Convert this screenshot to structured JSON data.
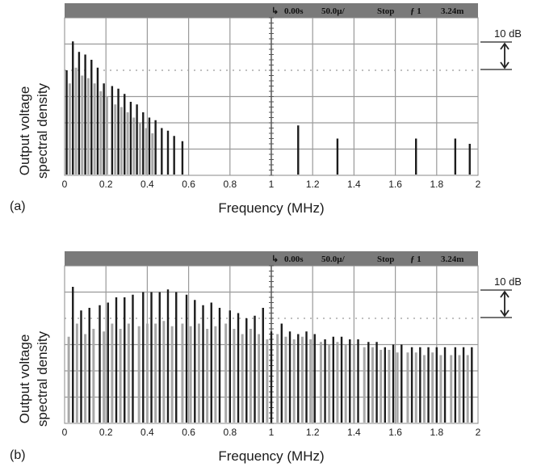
{
  "chart_data": [
    {
      "panel_label": "(a)",
      "type": "bar",
      "xlabel": "Frequency (MHz)",
      "ylabel": [
        "Output voltage",
        "spectral density"
      ],
      "xlim": [
        0,
        2
      ],
      "x_ticks": [
        "0",
        "0.2",
        "0.4",
        "0.6",
        "0.8",
        "1",
        "1.2",
        "1.4",
        "1.6",
        "1.8",
        "2"
      ],
      "y_unit": "dB",
      "scale_annotation": "10 dB",
      "grid": true,
      "status_bar": {
        "time": "0.00s",
        "timebase": "50.0µ/",
        "mode": "Stop",
        "trigger": "ƒ 1",
        "level": "3.24m"
      },
      "series": [
        {
          "style": "dark",
          "x": [
            0.01,
            0.04,
            0.07,
            0.1,
            0.13,
            0.16,
            0.19,
            0.23,
            0.26,
            0.29,
            0.32,
            0.35,
            0.38,
            0.41,
            0.44,
            0.47,
            0.5,
            0.53,
            0.57,
            1.13,
            1.32,
            1.7,
            1.89,
            1.96
          ],
          "values": [
            -20,
            -9,
            -13,
            -14,
            -16,
            -19,
            -25,
            -26,
            -27,
            -29,
            -32,
            -33,
            -36,
            -38,
            -39,
            -42,
            -43,
            -45,
            -47,
            -41,
            -46,
            -46,
            -46,
            -48
          ]
        },
        {
          "style": "grey",
          "x": [
            0.025,
            0.055,
            0.085,
            0.115,
            0.145,
            0.175,
            0.205,
            0.245,
            0.275,
            0.305,
            0.335,
            0.365,
            0.395,
            0.425
          ],
          "values": [
            -25,
            -19,
            -22,
            -23,
            -25,
            -28,
            -30,
            -33,
            -34,
            -36,
            -38,
            -40,
            -42,
            -44
          ]
        }
      ]
    },
    {
      "panel_label": "(b)",
      "type": "bar",
      "xlabel": "Frequency (MHz)",
      "ylabel": [
        "Output voltage",
        "spectral density"
      ],
      "xlim": [
        0,
        2
      ],
      "x_ticks": [
        "0",
        "0.2",
        "0.4",
        "0.6",
        "0.8",
        "1",
        "1.2",
        "1.4",
        "1.6",
        "1.8",
        "2"
      ],
      "y_unit": "dB",
      "scale_annotation": "10 dB",
      "grid": true,
      "status_bar": {
        "time": "0.00s",
        "timebase": "50.0µ/",
        "mode": "Stop",
        "trigger": "ƒ 1",
        "level": "3.24m"
      },
      "series": [
        {
          "style": "dark",
          "x": [
            0.04,
            0.08,
            0.12,
            0.17,
            0.21,
            0.25,
            0.29,
            0.33,
            0.38,
            0.42,
            0.46,
            0.5,
            0.54,
            0.59,
            0.63,
            0.67,
            0.71,
            0.75,
            0.8,
            0.84,
            0.88,
            0.92,
            0.96,
            1.0,
            1.05,
            1.09,
            1.13,
            1.17,
            1.21,
            1.26,
            1.3,
            1.34,
            1.38,
            1.42,
            1.47,
            1.51,
            1.55,
            1.59,
            1.63,
            1.68,
            1.72,
            1.76,
            1.8,
            1.84,
            1.89,
            1.93,
            1.97
          ],
          "values": [
            -8,
            -17,
            -16,
            -15,
            -14,
            -12,
            -12,
            -11,
            -10,
            -10,
            -10,
            -9,
            -10,
            -11,
            -13,
            -15,
            -14,
            -16,
            -17,
            -18,
            -20,
            -19,
            -16,
            -25,
            -22,
            -25,
            -26,
            -25,
            -26,
            -28,
            -27,
            -27,
            -28,
            -28,
            -29,
            -29,
            -31,
            -30,
            -30,
            -31,
            -31,
            -31,
            -31,
            -31,
            -31,
            -31,
            -31
          ]
        },
        {
          "style": "grey",
          "x": [
            0.02,
            0.06,
            0.1,
            0.14,
            0.19,
            0.23,
            0.27,
            0.31,
            0.36,
            0.4,
            0.44,
            0.48,
            0.52,
            0.57,
            0.61,
            0.65,
            0.69,
            0.73,
            0.78,
            0.82,
            0.86,
            0.9,
            0.94,
            0.98,
            1.03,
            1.07,
            1.11,
            1.15,
            1.19,
            1.24,
            1.28,
            1.32,
            1.36,
            1.4,
            1.45,
            1.49,
            1.53,
            1.57,
            1.61,
            1.66,
            1.7,
            1.74,
            1.78,
            1.82,
            1.87,
            1.91,
            1.95
          ],
          "values": [
            -27,
            -22,
            -26,
            -24,
            -25,
            -22,
            -24,
            -22,
            -23,
            -22,
            -22,
            -21,
            -23,
            -22,
            -23,
            -22,
            -24,
            -23,
            -22,
            -24,
            -26,
            -24,
            -26,
            -28,
            -26,
            -27,
            -28,
            -27,
            -28,
            -29,
            -30,
            -29,
            -30,
            -30,
            -31,
            -31,
            -32,
            -32,
            -33,
            -33,
            -33,
            -34,
            -33,
            -34,
            -34,
            -34,
            -34
          ]
        }
      ]
    }
  ]
}
